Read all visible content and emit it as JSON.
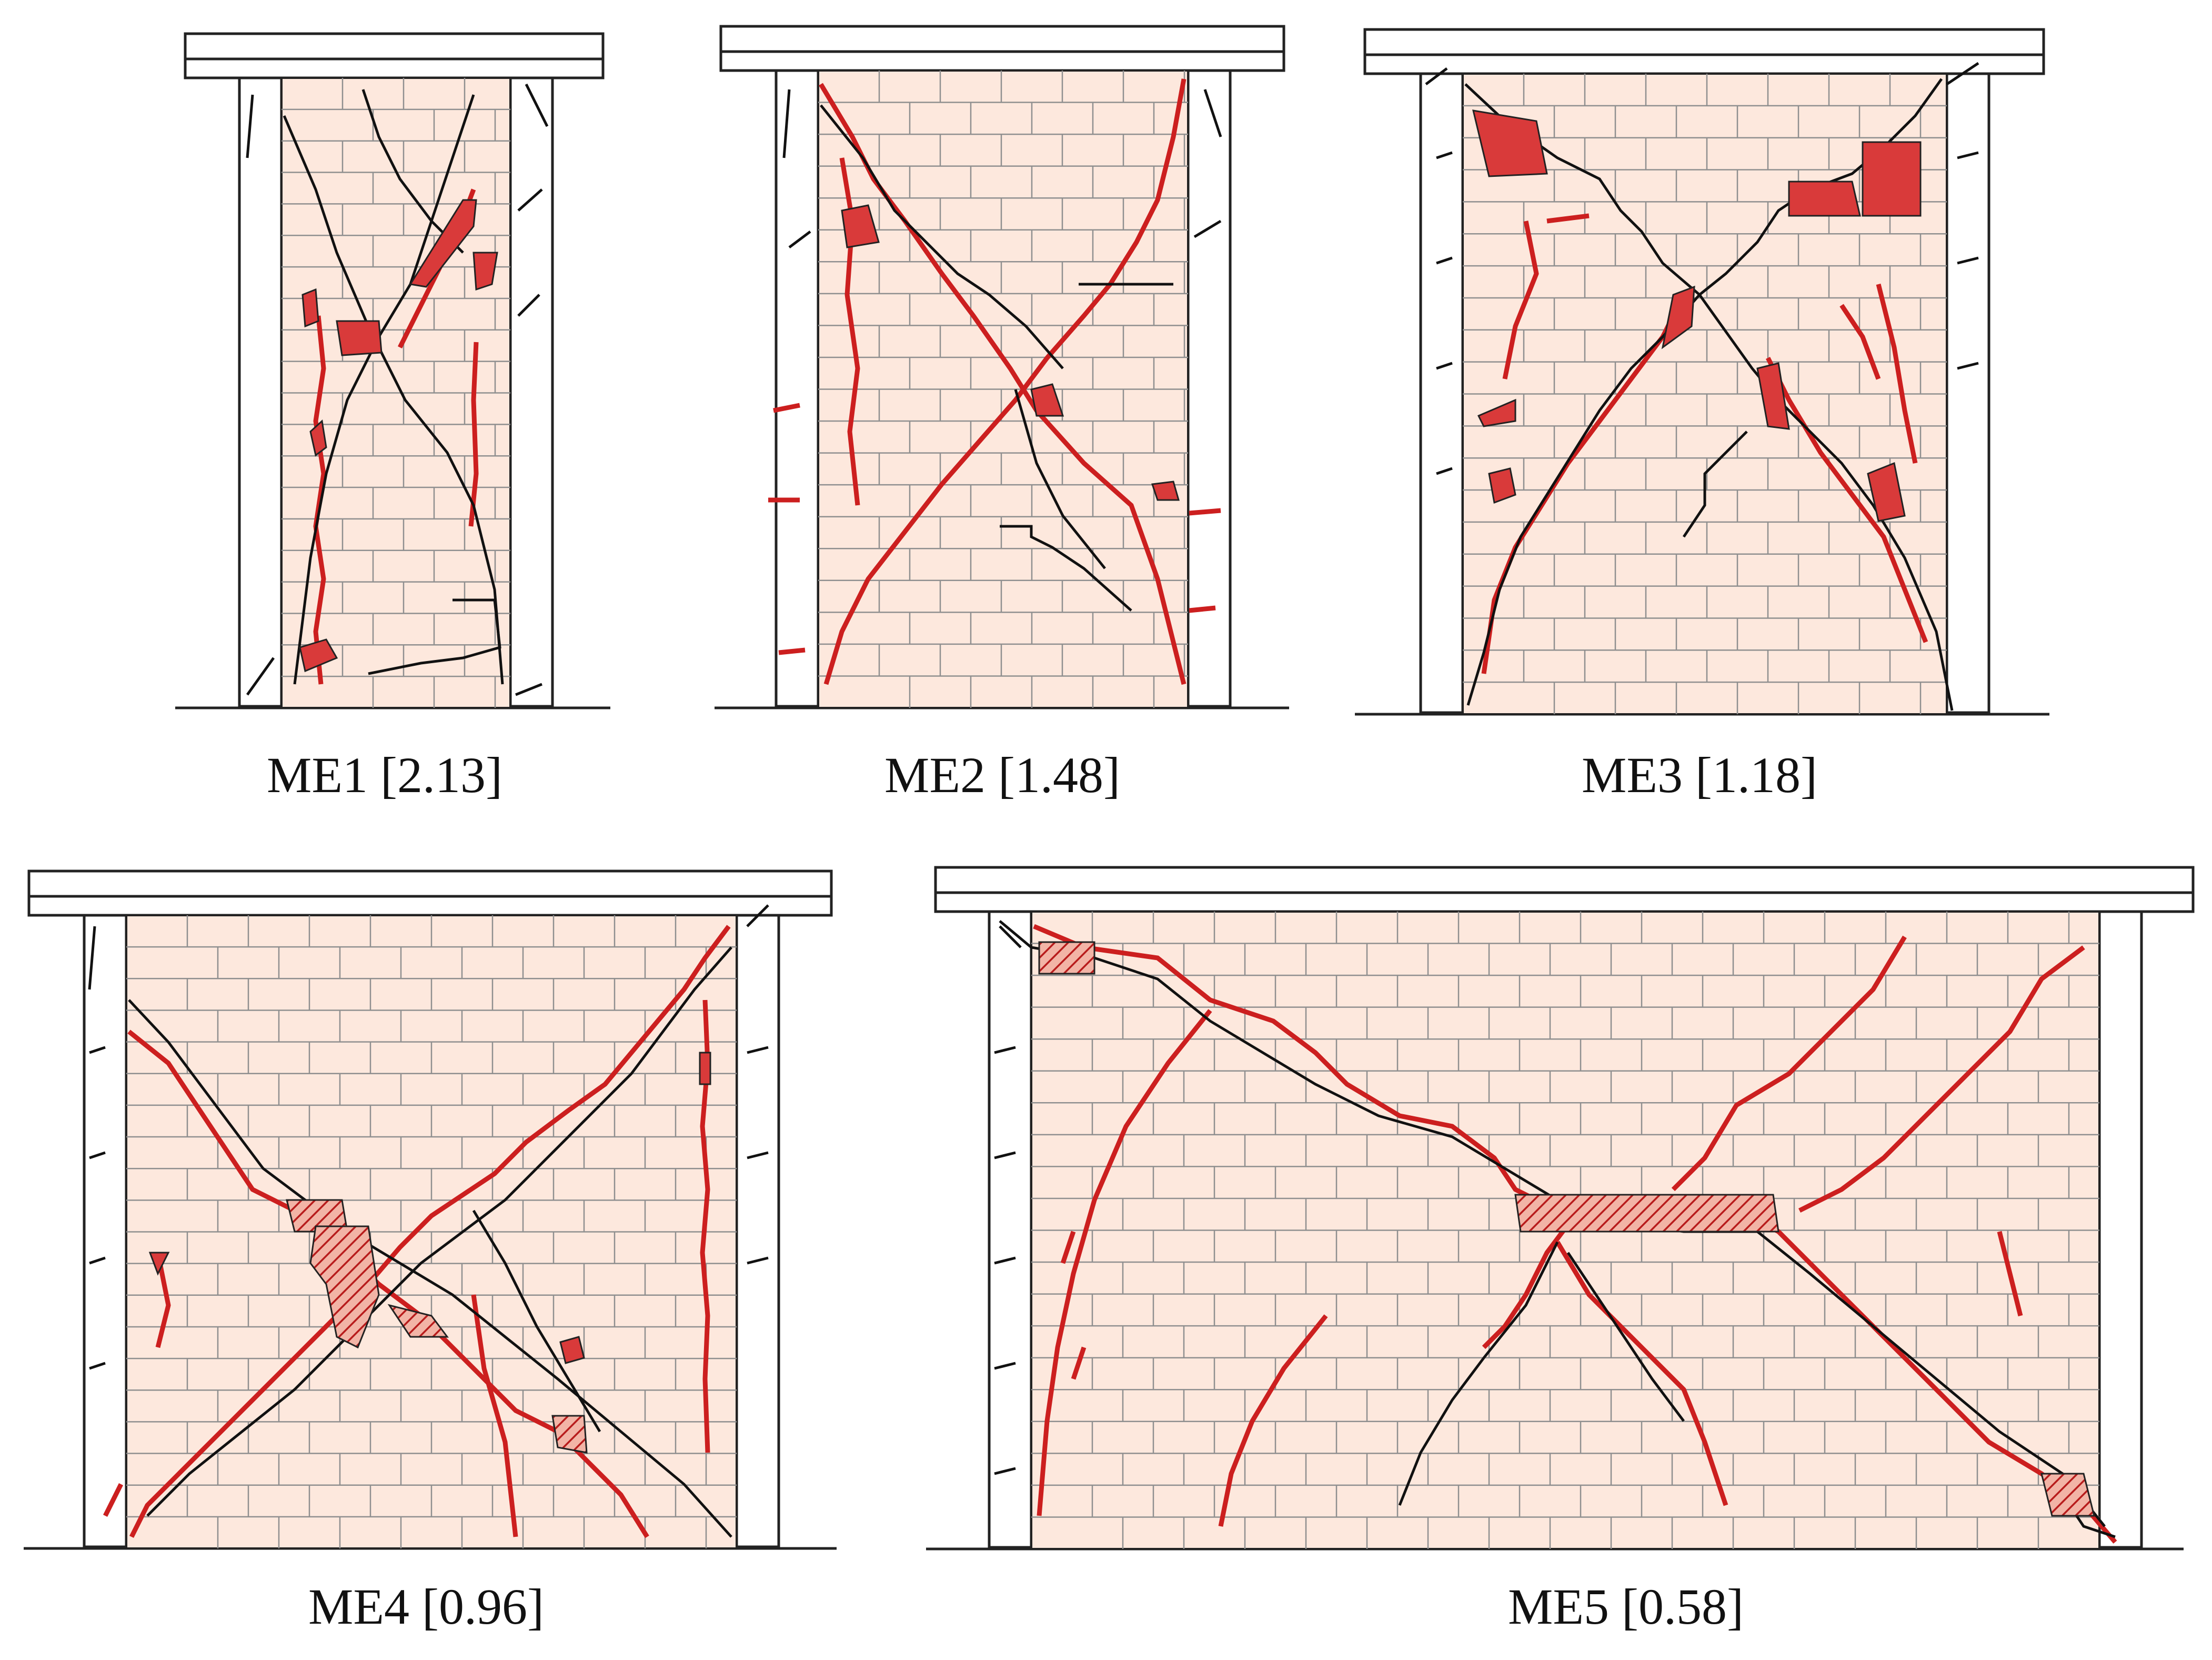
{
  "figure": {
    "type": "crack-pattern-diagram",
    "panels": [
      {
        "id": "ME1",
        "name": "ME1",
        "ratio": "2.13",
        "caption": "ME1 [2.13]"
      },
      {
        "id": "ME2",
        "name": "ME2",
        "ratio": "1.48",
        "caption": "ME2 [1.48]"
      },
      {
        "id": "ME3",
        "name": "ME3",
        "ratio": "1.18",
        "caption": "ME3 [1.18]"
      },
      {
        "id": "ME4",
        "name": "ME4",
        "ratio": "0.96",
        "caption": "ME4 [0.96]"
      },
      {
        "id": "ME5",
        "name": "ME5",
        "ratio": "0.58",
        "caption": "ME5 [0.58]"
      }
    ]
  },
  "colors": {
    "masonry_fill": "#fde8dd",
    "mortar_line": "#8f8f8f",
    "frame_stroke": "#222222",
    "crack_initial": "#111111",
    "crack_final": "#cc1f1f",
    "spalling_fill": "#d93a3a",
    "caption_text": "#111111"
  }
}
